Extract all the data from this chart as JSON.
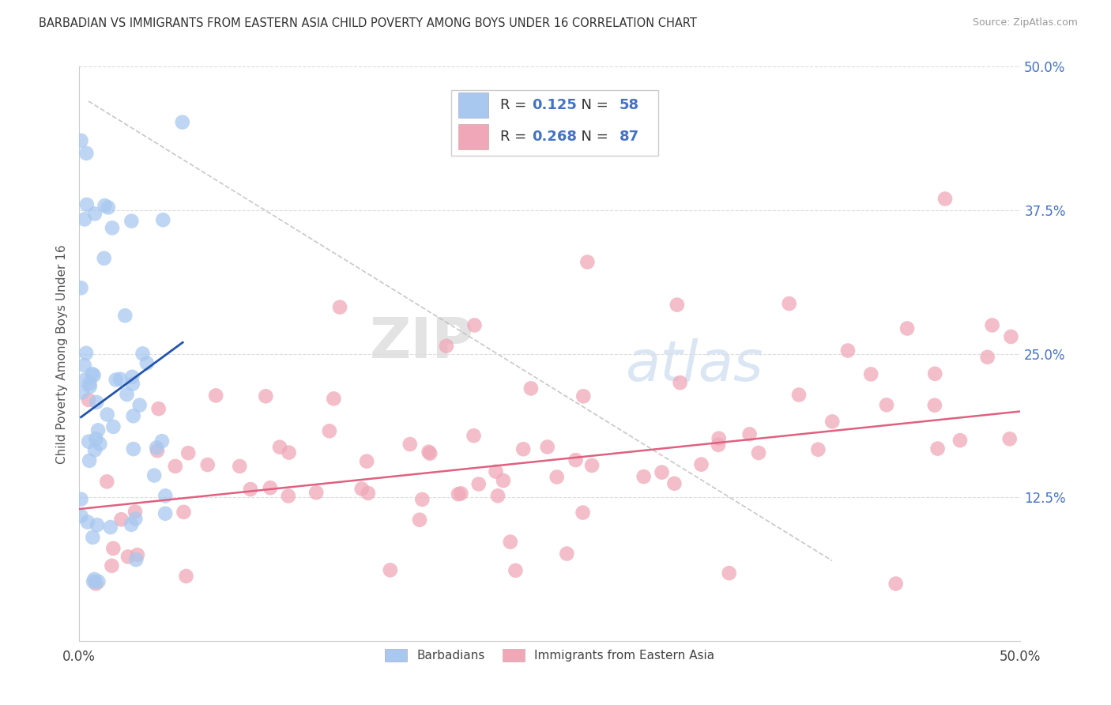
{
  "title": "BARBADIAN VS IMMIGRANTS FROM EASTERN ASIA CHILD POVERTY AMONG BOYS UNDER 16 CORRELATION CHART",
  "source": "Source: ZipAtlas.com",
  "ylabel": "Child Poverty Among Boys Under 16",
  "xlim": [
    0.0,
    0.5
  ],
  "ylim": [
    0.0,
    0.5
  ],
  "yticks_right": [
    0.125,
    0.25,
    0.375,
    0.5
  ],
  "ytick_right_labels": [
    "12.5%",
    "25.0%",
    "37.5%",
    "50.0%"
  ],
  "barbadian_R": 0.125,
  "barbadian_N": 58,
  "eastern_asia_R": 0.268,
  "eastern_asia_N": 87,
  "barbadian_color": "#a8c8f0",
  "eastern_asia_color": "#f0a8b8",
  "barbadian_line_color": "#2255aa",
  "eastern_asia_line_color": "#e06080",
  "background_color": "#ffffff",
  "grid_color": "#dddddd",
  "watermark_zip": "ZIP",
  "watermark_atlas": "atlas"
}
